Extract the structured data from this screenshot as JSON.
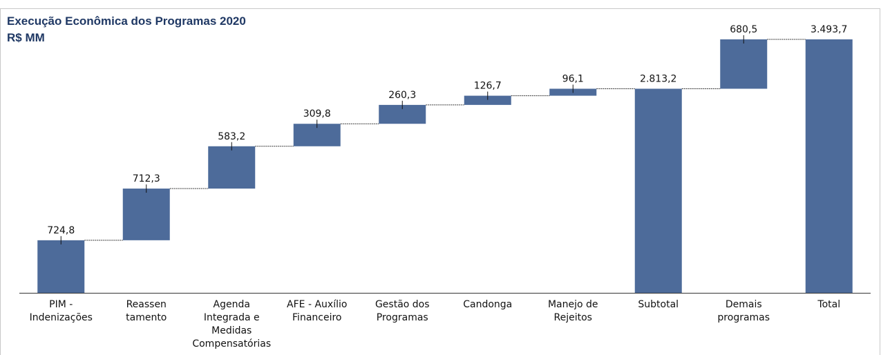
{
  "chart_data": {
    "type": "waterfall",
    "title": "Execução Econômica dos Programas 2020",
    "subtitle": "R$ MM",
    "categories": [
      "PIM -\nIndenizações",
      "Reassen\ntamento",
      "Agenda\nIntegrada e\nMedidas\nCompensatórias",
      "AFE - Auxílio\nFinanceiro",
      "Gestão dos\nProgramas",
      "Candonga",
      "Manejo de\nRejeitos",
      "Subtotal",
      "Demais\nprogramas",
      "Total"
    ],
    "values": [
      724.8,
      712.3,
      583.2,
      309.8,
      260.3,
      126.7,
      96.1,
      2813.2,
      680.5,
      3493.7
    ],
    "value_labels": [
      "724,8",
      "712,3",
      "583,2",
      "309,8",
      "260,3",
      "126,7",
      "96,1",
      "2.813,2",
      "680,5",
      "3.493,7"
    ],
    "measure": [
      "relative",
      "relative",
      "relative",
      "relative",
      "relative",
      "relative",
      "relative",
      "total",
      "relative",
      "total"
    ],
    "color": "#4d6b9a"
  }
}
